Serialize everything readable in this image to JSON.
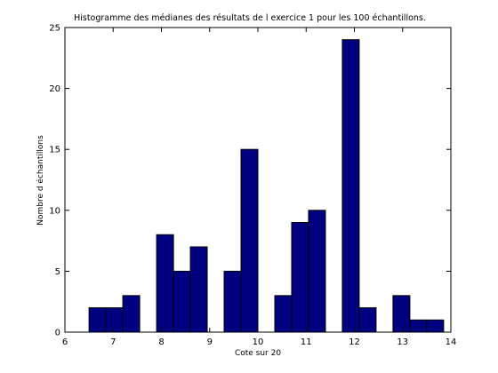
{
  "chart_data": {
    "type": "bar",
    "title": "Histogramme des médianes des résultats de l exercice 1 pour les 100 échantillons.",
    "xlabel": "Cote sur 20",
    "ylabel": "Nombre d échantillons",
    "xlim": [
      6,
      14
    ],
    "ylim": [
      0,
      25
    ],
    "xticks": [
      6,
      7,
      8,
      9,
      10,
      11,
      12,
      13,
      14
    ],
    "yticks": [
      0,
      5,
      10,
      15,
      20,
      25
    ],
    "bin_width": 0.35,
    "bins": [
      {
        "start": 6.5,
        "count": 2
      },
      {
        "start": 6.85,
        "count": 2
      },
      {
        "start": 7.2,
        "count": 3
      },
      {
        "start": 7.55,
        "count": 0
      },
      {
        "start": 7.9,
        "count": 8
      },
      {
        "start": 8.25,
        "count": 5
      },
      {
        "start": 8.6,
        "count": 7
      },
      {
        "start": 8.95,
        "count": 0
      },
      {
        "start": 9.3,
        "count": 5
      },
      {
        "start": 9.65,
        "count": 15
      },
      {
        "start": 10.0,
        "count": 0
      },
      {
        "start": 10.35,
        "count": 3
      },
      {
        "start": 10.7,
        "count": 9
      },
      {
        "start": 11.05,
        "count": 10
      },
      {
        "start": 11.4,
        "count": 0
      },
      {
        "start": 11.75,
        "count": 24
      },
      {
        "start": 12.1,
        "count": 2
      },
      {
        "start": 12.45,
        "count": 0
      },
      {
        "start": 12.8,
        "count": 3
      },
      {
        "start": 13.15,
        "count": 1
      },
      {
        "start": 13.5,
        "count": 1
      }
    ],
    "grid": false,
    "bar_color": "#000080",
    "edge_color": "#000000"
  }
}
